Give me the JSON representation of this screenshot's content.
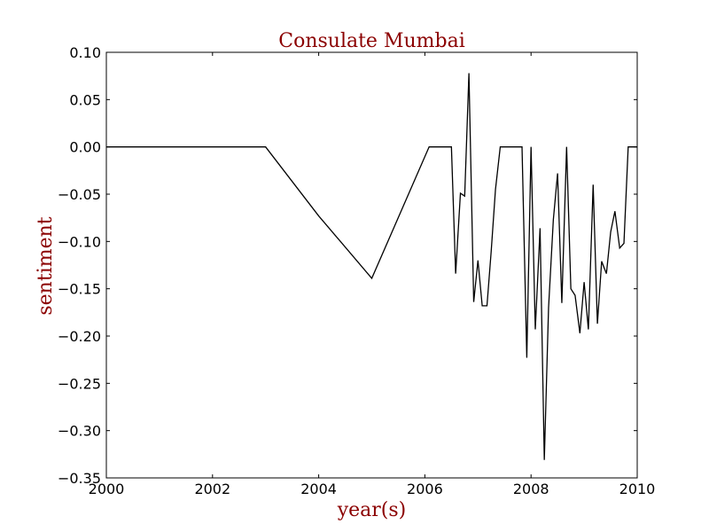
{
  "chart_data": {
    "type": "line",
    "title": "Consulate Mumbai",
    "xlabel": "year(s)",
    "ylabel": "sentiment",
    "xlim": [
      2000,
      2010
    ],
    "ylim": [
      -0.35,
      0.1
    ],
    "x_ticks": [
      "2000",
      "2002",
      "2004",
      "2006",
      "2008",
      "2010"
    ],
    "y_ticks": [
      "0.10",
      "0.05",
      "0.00",
      "−0.05",
      "−0.10",
      "−0.15",
      "−0.20",
      "−0.25",
      "−0.30",
      "−0.35"
    ],
    "grid": false,
    "legend": "none",
    "colors": {
      "line": "#000000",
      "title": "#8b0000",
      "axis_label": "#8b0000"
    },
    "series": [
      {
        "x": [
          2000.0,
          2003.0,
          2004.0,
          2005.0,
          2006.08,
          2006.5,
          2006.58,
          2006.67,
          2006.75,
          2006.83,
          2006.92,
          2007.0,
          2007.08,
          2007.17,
          2007.25,
          2007.33,
          2007.42,
          2007.83,
          2007.92,
          2008.0,
          2008.08,
          2008.17,
          2008.25,
          2008.33,
          2008.42,
          2008.5,
          2008.58,
          2008.67,
          2008.75,
          2008.83,
          2008.92,
          2009.0,
          2009.08,
          2009.17,
          2009.25,
          2009.33,
          2009.42,
          2009.5,
          2009.58,
          2009.67,
          2009.75,
          2009.83,
          2009.92,
          2010.0
        ],
        "y": [
          0.0,
          0.0,
          -0.073,
          -0.139,
          0.0,
          0.0,
          -0.134,
          -0.049,
          -0.052,
          0.078,
          -0.164,
          -0.12,
          -0.168,
          -0.168,
          -0.11,
          -0.045,
          0.0,
          0.0,
          -0.223,
          0.0,
          -0.193,
          -0.086,
          -0.331,
          -0.17,
          -0.077,
          -0.028,
          -0.165,
          0.0,
          -0.15,
          -0.157,
          -0.197,
          -0.143,
          -0.193,
          -0.04,
          -0.187,
          -0.121,
          -0.134,
          -0.09,
          -0.068,
          -0.107,
          -0.102,
          0.0,
          0.0,
          0.0
        ]
      }
    ]
  }
}
